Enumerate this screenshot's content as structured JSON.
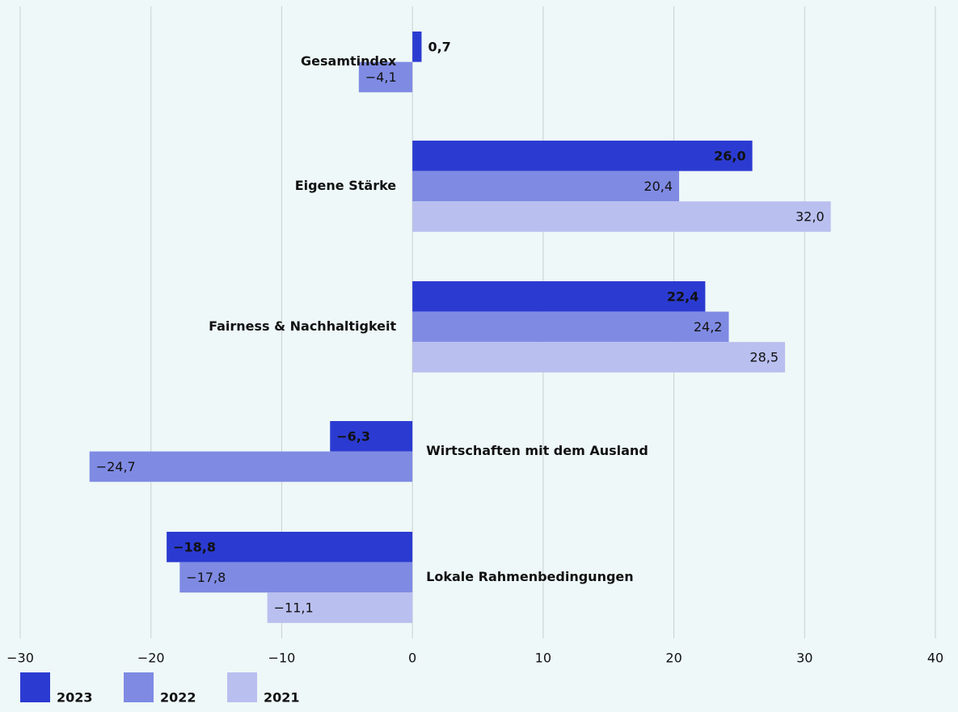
{
  "chart_data": {
    "type": "bar",
    "orientation": "horizontal",
    "categories": [
      "Gesamtindex",
      "Eigene Stärke",
      "Fairness & Nachhaltigkeit",
      "Wirtschaften mit dem Ausland",
      "Lokale Rahmenbedingungen"
    ],
    "series": [
      {
        "name": "2023",
        "color": "#2b3bd1",
        "values": [
          0.7,
          26.0,
          22.4,
          -6.3,
          -18.8
        ],
        "value_labels": [
          "0,7",
          "26,0",
          "22,4",
          "−6,3",
          "−18,8"
        ]
      },
      {
        "name": "2022",
        "color": "#7f8be3",
        "values": [
          -4.1,
          20.4,
          24.2,
          -24.7,
          -17.8
        ],
        "value_labels": [
          "−4,1",
          "20,4",
          "24,2",
          "−24,7",
          "−17,8"
        ]
      },
      {
        "name": "2021",
        "color": "#b9bfef",
        "values": [
          null,
          32.0,
          28.5,
          null,
          -11.1
        ],
        "value_labels": [
          null,
          "32,0",
          "28,5",
          null,
          "−11,1"
        ]
      }
    ],
    "xlim": [
      -30,
      40
    ],
    "xticks": [
      {
        "value": -30,
        "label": "−30"
      },
      {
        "value": -20,
        "label": "−20"
      },
      {
        "value": -10,
        "label": "−10"
      },
      0,
      10,
      20,
      30,
      40
    ],
    "grid": true,
    "legend": "bottom-left"
  }
}
